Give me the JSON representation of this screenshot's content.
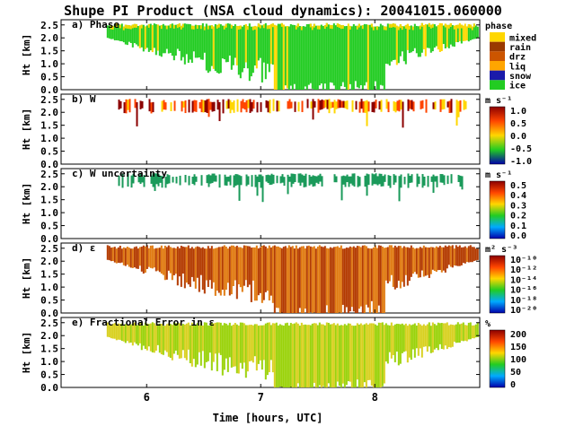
{
  "title": "Shupe PI Product (NSA cloud dynamics): 20041015.060000",
  "xlabel": "Time [hours, UTC]",
  "ylabel": "Ht [km]",
  "chart_data": [
    {
      "type": "heatmap",
      "title": "a) Phase",
      "ylabel": "Ht [km]",
      "xlim": [
        5.25,
        8.92
      ],
      "ylim": [
        0.0,
        2.7
      ],
      "yticks": [
        "0.0",
        "0.5",
        "1.0",
        "1.5",
        "2.0",
        "2.5"
      ],
      "colorbar": {
        "kind": "categorical",
        "title": "phase",
        "categories": [
          "mixed",
          "rain",
          "drz",
          "liq",
          "snow",
          "ice"
        ],
        "colors": [
          "#ffd700",
          "#9a3a00",
          "#cc5500",
          "#ffa500",
          "#1a1aaa",
          "#22cc22"
        ]
      },
      "cloud": {
        "x_start": 5.65,
        "x_end": 8.9,
        "top_km": 2.5,
        "base_km": 0.0
      }
    },
    {
      "type": "heatmap",
      "title": "b) W",
      "ylabel": "Ht [km]",
      "xlim": [
        5.25,
        8.92
      ],
      "ylim": [
        0.0,
        2.7
      ],
      "yticks": [
        "0.0",
        "0.5",
        "1.0",
        "1.5",
        "2.0",
        "2.5"
      ],
      "colorbar": {
        "kind": "continuous",
        "title": "m s⁻¹",
        "labels": [
          "1.0",
          "0.5",
          "0.0",
          "-0.5",
          "-1.0"
        ],
        "colors": [
          "#8b0000",
          "#ff4500",
          "#ffd700",
          "#22cc22",
          "#0000aa"
        ]
      },
      "cloud": {
        "x_start": 5.75,
        "x_end": 8.8,
        "top_km": 2.45,
        "base_km": 2.0
      }
    },
    {
      "type": "heatmap",
      "title": "c) W uncertainty",
      "ylabel": "Ht [km]",
      "xlim": [
        5.25,
        8.92
      ],
      "ylim": [
        0.0,
        2.7
      ],
      "yticks": [
        "0.0",
        "0.5",
        "1.0",
        "1.5",
        "2.0",
        "2.5"
      ],
      "colorbar": {
        "kind": "continuous",
        "title": "m s⁻¹",
        "labels": [
          "0.5",
          "0.4",
          "0.3",
          "0.2",
          "0.1",
          "0.0"
        ],
        "colors": [
          "#8b0000",
          "#ff4500",
          "#ffd700",
          "#22cc22",
          "#00aaff",
          "#0000aa"
        ]
      },
      "cloud": {
        "x_start": 5.75,
        "x_end": 8.8,
        "top_km": 2.45,
        "base_km": 2.0
      }
    },
    {
      "type": "heatmap",
      "title": "d) ε",
      "ylabel": "Ht [km]",
      "xlim": [
        5.25,
        8.92
      ],
      "ylim": [
        0.0,
        2.7
      ],
      "yticks": [
        "0.0",
        "0.5",
        "1.0",
        "1.5",
        "2.0",
        "2.5"
      ],
      "colorbar": {
        "kind": "continuous",
        "title": "m² s⁻³",
        "labels": [
          "10⁻¹⁰",
          "10⁻¹²",
          "10⁻¹⁴",
          "10⁻¹⁶",
          "10⁻¹⁸",
          "10⁻²⁰"
        ],
        "colors": [
          "#8b0000",
          "#ff4500",
          "#ffd700",
          "#22cc22",
          "#00aaff",
          "#0000aa"
        ]
      },
      "cloud": {
        "x_start": 5.65,
        "x_end": 8.9,
        "top_km": 2.55,
        "base_km": 0.0
      }
    },
    {
      "type": "heatmap",
      "title": "e) Fractional Error in ε",
      "ylabel": "Ht [km]",
      "xlabel": "Time [hours, UTC]",
      "xlim": [
        5.25,
        8.92
      ],
      "ylim": [
        0.0,
        2.7
      ],
      "yticks": [
        "0.0",
        "0.5",
        "1.0",
        "1.5",
        "2.0",
        "2.5"
      ],
      "xticks": [
        "6",
        "7",
        "8"
      ],
      "colorbar": {
        "kind": "continuous",
        "title": "%",
        "labels": [
          "200",
          "150",
          "100",
          "50",
          "0"
        ],
        "colors": [
          "#8b0000",
          "#ff4500",
          "#ffd700",
          "#22cc22",
          "#00aaff",
          "#0000aa"
        ]
      },
      "cloud": {
        "x_start": 5.65,
        "x_end": 8.9,
        "top_km": 2.45,
        "base_km": 0.0
      }
    }
  ]
}
